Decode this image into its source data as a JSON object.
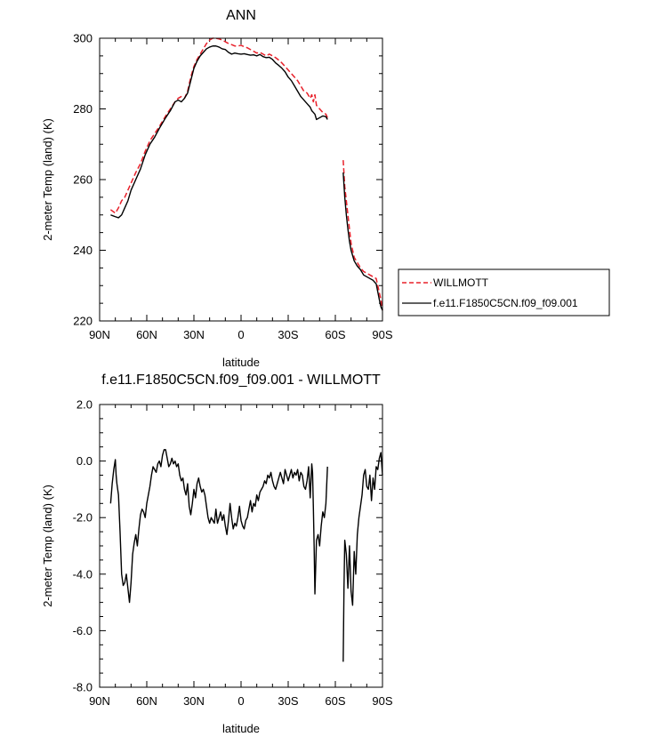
{
  "chart_data": [
    {
      "type": "line",
      "title": "ANN",
      "xlabel": "latitude",
      "ylabel": "2-meter Temp (land) (K)",
      "xlim": [
        90,
        -90
      ],
      "ylim": [
        220,
        300
      ],
      "xticks": [
        90,
        60,
        30,
        0,
        -30,
        -60,
        -90
      ],
      "xtick_labels": [
        "90N",
        "60N",
        "30N",
        "0",
        "30S",
        "60S",
        "90S"
      ],
      "yticks": [
        220,
        240,
        260,
        280,
        300
      ],
      "ytick_labels": [
        "220",
        "240",
        "260",
        "280",
        "300"
      ],
      "legend_position": "right",
      "series": [
        {
          "name": "WILLMOTT",
          "color": "#e8202a",
          "dash": "dashed",
          "segments": [
            {
              "x": [
                83,
                80,
                78,
                76,
                74,
                72,
                70,
                67,
                64,
                61,
                58,
                55,
                52,
                48,
                45,
                42,
                40,
                38,
                36,
                34,
                32,
                30,
                28,
                26,
                24,
                22,
                20,
                18,
                16,
                14,
                12,
                10,
                8,
                6,
                4,
                2,
                0,
                -2,
                -4,
                -6,
                -8,
                -10,
                -12,
                -14,
                -16,
                -18,
                -20,
                -22,
                -24,
                -26,
                -28,
                -30,
                -32,
                -34,
                -36,
                -38,
                -40,
                -42,
                -44,
                -45,
                -46,
                -47,
                -48,
                -50,
                -52,
                -54,
                -55
              ],
              "y": [
                251.5,
                250.5,
                252,
                254,
                255,
                257,
                259,
                262,
                264.5,
                268,
                271,
                273,
                275,
                278,
                280,
                282,
                283,
                283.5,
                283,
                285,
                289,
                292,
                294,
                295.5,
                297,
                298.5,
                299.5,
                300,
                300,
                299.8,
                299.5,
                299,
                298.5,
                298.2,
                297.8,
                297.8,
                298,
                297.6,
                297.3,
                296.8,
                296.3,
                295.8,
                296,
                295.5,
                295,
                295.5,
                295,
                294.5,
                293.8,
                293,
                292,
                291,
                290,
                289,
                288,
                286.5,
                285,
                284.5,
                283,
                284,
                282,
                284,
                281,
                280,
                279,
                278.5,
                277.5
              ]
            },
            {
              "x": [
                -65,
                -66,
                -67,
                -68,
                -69,
                -70,
                -72,
                -74,
                -76,
                -78,
                -80,
                -82,
                -84,
                -86,
                -88,
                -89,
                -90
              ],
              "y": [
                265.5,
                258,
                254,
                250,
                246,
                242,
                238,
                236.5,
                235,
                234,
                233.5,
                233,
                232.5,
                232,
                228,
                226,
                223
              ]
            }
          ]
        },
        {
          "name": "f.e11.F1850C5CN.f09_f09.001",
          "color": "#000000",
          "dash": "solid",
          "segments": [
            {
              "x": [
                83,
                80,
                78,
                76,
                74,
                72,
                70,
                67,
                64,
                61,
                58,
                55,
                52,
                48,
                45,
                42,
                40,
                38,
                36,
                34,
                32,
                30,
                28,
                26,
                24,
                22,
                20,
                18,
                16,
                14,
                12,
                10,
                8,
                6,
                4,
                2,
                0,
                -2,
                -4,
                -6,
                -8,
                -10,
                -12,
                -14,
                -16,
                -18,
                -20,
                -22,
                -24,
                -26,
                -28,
                -30,
                -32,
                -34,
                -36,
                -38,
                -40,
                -42,
                -44,
                -45,
                -46,
                -47,
                -48,
                -50,
                -52,
                -54,
                -55
              ],
              "y": [
                250,
                249.5,
                249.2,
                250,
                252,
                254,
                257,
                260,
                263,
                267,
                270,
                272,
                274.5,
                277.5,
                279.5,
                282,
                282.5,
                282,
                283,
                284.5,
                288,
                291.5,
                293.5,
                295,
                296,
                297,
                297.5,
                297.8,
                297.8,
                297.5,
                297,
                296.8,
                296,
                295.5,
                295.8,
                295.6,
                295.5,
                295.6,
                295.4,
                295.2,
                295.3,
                295,
                295.4,
                294.8,
                294.5,
                294.6,
                294,
                293,
                292.3,
                291.5,
                290.5,
                289,
                288,
                286.5,
                285,
                283.5,
                282.5,
                281.5,
                280.5,
                279.5,
                279,
                278.5,
                277,
                277.5,
                278,
                277.8,
                277
              ]
            },
            {
              "x": [
                -65,
                -66,
                -67,
                -68,
                -69,
                -70,
                -72,
                -74,
                -76,
                -78,
                -80,
                -82,
                -84,
                -86,
                -88,
                -89,
                -90
              ],
              "y": [
                262,
                255,
                250,
                246,
                242.5,
                240,
                237,
                235.5,
                234.5,
                233,
                232.5,
                232,
                231.5,
                230.5,
                226,
                224,
                223
              ]
            }
          ]
        }
      ]
    },
    {
      "type": "line",
      "title": "f.e11.F1850C5CN.f09_f09.001 - WILLMOTT",
      "xlabel": "latitude",
      "ylabel": "2-meter Temp (land) (K)",
      "xlim": [
        90,
        -90
      ],
      "ylim": [
        -8,
        2
      ],
      "xticks": [
        90,
        60,
        30,
        0,
        -30,
        -60,
        -90
      ],
      "xtick_labels": [
        "90N",
        "60N",
        "30N",
        "0",
        "30S",
        "60S",
        "90S"
      ],
      "yticks": [
        2,
        0,
        -2,
        -4,
        -6,
        -8
      ],
      "ytick_labels": [
        "2.0",
        "0.0",
        "-2.0",
        "-4.0",
        "-6.0",
        "-8.0"
      ],
      "series": [
        {
          "color": "#000000",
          "dash": "solid",
          "segments": [
            {
              "x": [
                83,
                82,
                81,
                80,
                79.5,
                79,
                78,
                77,
                76,
                75,
                74,
                73,
                72,
                71,
                70,
                69,
                68,
                67,
                66,
                65,
                64,
                63,
                62,
                61,
                60,
                59,
                58,
                57,
                56,
                55,
                54,
                53,
                52,
                51,
                50,
                49,
                48,
                47,
                46,
                45,
                44,
                43,
                42,
                41,
                40,
                39,
                38,
                37,
                36,
                35,
                34,
                33,
                32,
                31,
                30,
                29,
                28,
                27,
                26,
                25,
                24,
                23,
                22,
                21,
                20,
                19,
                18,
                17,
                16,
                15,
                14,
                13,
                12,
                11,
                10,
                9,
                8,
                7,
                6,
                5,
                4,
                3,
                2,
                1,
                0,
                -1,
                -2,
                -3,
                -4,
                -5,
                -6,
                -7,
                -8,
                -9,
                -10,
                -11,
                -12,
                -13,
                -14,
                -15,
                -16,
                -17,
                -18,
                -19,
                -20,
                -21,
                -22,
                -23,
                -24,
                -25,
                -26,
                -27,
                -28,
                -29,
                -30,
                -31,
                -32,
                -33,
                -34,
                -35,
                -36,
                -37,
                -38,
                -39,
                -40,
                -41,
                -42,
                -43,
                -44,
                -45,
                -45.5,
                -46,
                -46.5,
                -47,
                -48,
                -49,
                -50,
                -51,
                -52,
                -53,
                -54,
                -55
              ],
              "y": [
                -1.5,
                -0.8,
                -0.3,
                0.05,
                -0.5,
                -0.8,
                -1.2,
                -2.5,
                -4.0,
                -4.4,
                -4.3,
                -4.0,
                -4.5,
                -5.0,
                -4.3,
                -3.3,
                -2.9,
                -2.6,
                -3.0,
                -2.4,
                -1.9,
                -1.7,
                -1.8,
                -2.0,
                -1.5,
                -1.2,
                -0.9,
                -0.5,
                -0.2,
                -0.3,
                -0.4,
                -0.1,
                0.0,
                -0.2,
                0.2,
                0.4,
                0.4,
                0.1,
                -0.2,
                -0.1,
                0.1,
                -0.1,
                0.0,
                -0.2,
                -0.1,
                -0.5,
                -0.7,
                -0.6,
                -1.0,
                -1.2,
                -0.8,
                -1.6,
                -1.9,
                -1.5,
                -1.0,
                -1.3,
                -0.8,
                -0.6,
                -0.9,
                -1.1,
                -1.0,
                -1.2,
                -1.6,
                -2.0,
                -2.2,
                -2.0,
                -2.1,
                -2.2,
                -1.7,
                -2.2,
                -2.0,
                -1.8,
                -2.1,
                -1.9,
                -2.3,
                -2.6,
                -2.1,
                -1.5,
                -2.0,
                -2.4,
                -2.2,
                -2.3,
                -2.0,
                -1.6,
                -2.1,
                -2.3,
                -2.4,
                -2.1,
                -2.0,
                -1.7,
                -1.4,
                -1.8,
                -1.5,
                -1.6,
                -1.2,
                -1.4,
                -1.1,
                -1.0,
                -0.9,
                -0.7,
                -0.8,
                -0.5,
                -0.6,
                -0.4,
                -0.7,
                -0.9,
                -1.0,
                -0.8,
                -0.6,
                -0.4,
                -0.6,
                -0.8,
                -0.3,
                -0.5,
                -0.7,
                -0.5,
                -0.3,
                -0.6,
                -0.4,
                -0.5,
                -0.3,
                -0.7,
                -0.4,
                -0.5,
                -0.9,
                -1.0,
                -0.7,
                -0.2,
                -1.3,
                -0.1,
                -0.4,
                -1.6,
                -3.0,
                -4.7,
                -2.8,
                -2.6,
                -3.0,
                -2.3,
                -1.8,
                -2.0,
                -1.5,
                -0.2
              ]
            },
            {
              "x": [
                -65,
                -65.5,
                -66,
                -67,
                -68,
                -69,
                -70,
                -71,
                -72,
                -73,
                -74,
                -75,
                -76,
                -77,
                -78,
                -79,
                -80,
                -81,
                -82,
                -83,
                -84,
                -85,
                -86,
                -87,
                -88,
                -89,
                -90
              ],
              "y": [
                -7.1,
                -4.5,
                -2.8,
                -3.3,
                -4.5,
                -3.0,
                -4.6,
                -5.1,
                -3.2,
                -4.0,
                -2.6,
                -2.0,
                -1.6,
                -1.2,
                -0.5,
                -0.3,
                -0.9,
                -1.0,
                -0.5,
                -1.4,
                -0.6,
                -1.0,
                -0.2,
                -0.3,
                0.1,
                0.3,
                -0.5
              ]
            }
          ]
        }
      ]
    }
  ]
}
